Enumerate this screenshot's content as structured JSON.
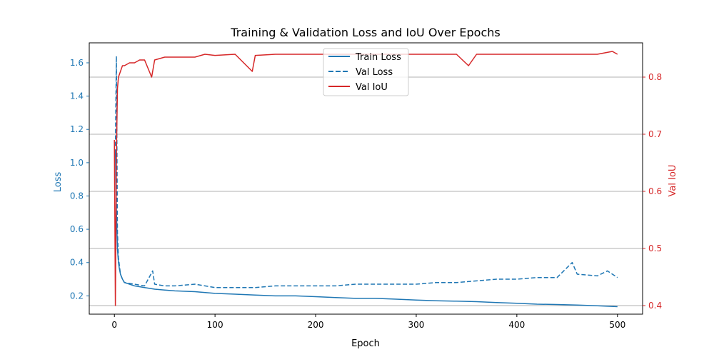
{
  "chart_data": {
    "type": "line",
    "title": "Training & Validation Loss and IoU Over Epochs",
    "xlabel": "Epoch",
    "ylabel_left": "Loss",
    "ylabel_right": "Val IoU",
    "xlim": [
      -25,
      525
    ],
    "ylim_left": [
      0.09,
      1.72
    ],
    "ylim_right": [
      0.385,
      0.86
    ],
    "xticks": [
      0,
      100,
      200,
      300,
      400,
      500
    ],
    "yticks_left": [
      0.2,
      0.4,
      0.6,
      0.8,
      1.0,
      1.2,
      1.4,
      1.6
    ],
    "yticks_right": [
      0.4,
      0.5,
      0.6,
      0.7,
      0.8
    ],
    "grid": "horizontal lines at right-axis ticks",
    "legend_position": "upper-center",
    "colors": {
      "loss": "#1f77b4",
      "iou": "#d62728"
    },
    "series": [
      {
        "name": "Train Loss",
        "axis": "left",
        "style": "solid",
        "x": [
          1,
          2,
          3,
          4,
          5,
          6,
          8,
          10,
          15,
          20,
          30,
          40,
          50,
          60,
          80,
          100,
          120,
          140,
          160,
          180,
          200,
          220,
          240,
          260,
          280,
          300,
          320,
          340,
          360,
          380,
          400,
          420,
          440,
          460,
          480,
          500
        ],
        "values": [
          1.08,
          0.72,
          0.48,
          0.4,
          0.36,
          0.33,
          0.3,
          0.28,
          0.27,
          0.26,
          0.25,
          0.24,
          0.235,
          0.23,
          0.225,
          0.215,
          0.21,
          0.205,
          0.2,
          0.2,
          0.195,
          0.19,
          0.185,
          0.185,
          0.18,
          0.175,
          0.17,
          0.168,
          0.165,
          0.16,
          0.155,
          0.15,
          0.148,
          0.145,
          0.14,
          0.135
        ]
      },
      {
        "name": "Val Loss",
        "axis": "left",
        "style": "dashed",
        "x": [
          1,
          2,
          3,
          4,
          5,
          6,
          8,
          10,
          20,
          30,
          38,
          40,
          50,
          60,
          80,
          100,
          120,
          140,
          160,
          180,
          200,
          220,
          240,
          260,
          280,
          300,
          320,
          340,
          360,
          380,
          400,
          420,
          440,
          455,
          460,
          480,
          490,
          500
        ],
        "values": [
          1.1,
          1.64,
          0.58,
          0.43,
          0.38,
          0.33,
          0.3,
          0.28,
          0.27,
          0.26,
          0.35,
          0.27,
          0.26,
          0.26,
          0.27,
          0.25,
          0.25,
          0.25,
          0.26,
          0.26,
          0.26,
          0.26,
          0.27,
          0.27,
          0.27,
          0.27,
          0.28,
          0.28,
          0.29,
          0.3,
          0.3,
          0.31,
          0.31,
          0.4,
          0.33,
          0.32,
          0.35,
          0.31
        ]
      },
      {
        "name": "Val IoU",
        "axis": "right",
        "style": "solid",
        "x": [
          0,
          1,
          2,
          3,
          4,
          6,
          8,
          10,
          15,
          20,
          25,
          30,
          37,
          40,
          50,
          60,
          70,
          80,
          90,
          100,
          120,
          137,
          140,
          160,
          180,
          200,
          220,
          240,
          260,
          280,
          300,
          320,
          340,
          352,
          360,
          380,
          400,
          420,
          440,
          460,
          480,
          495,
          500
        ],
        "values": [
          0.69,
          0.4,
          0.66,
          0.78,
          0.8,
          0.81,
          0.82,
          0.82,
          0.825,
          0.825,
          0.83,
          0.83,
          0.8,
          0.83,
          0.835,
          0.835,
          0.835,
          0.835,
          0.84,
          0.838,
          0.84,
          0.81,
          0.838,
          0.84,
          0.84,
          0.84,
          0.84,
          0.84,
          0.84,
          0.84,
          0.84,
          0.84,
          0.84,
          0.82,
          0.84,
          0.84,
          0.84,
          0.84,
          0.84,
          0.84,
          0.84,
          0.845,
          0.84
        ]
      }
    ]
  }
}
